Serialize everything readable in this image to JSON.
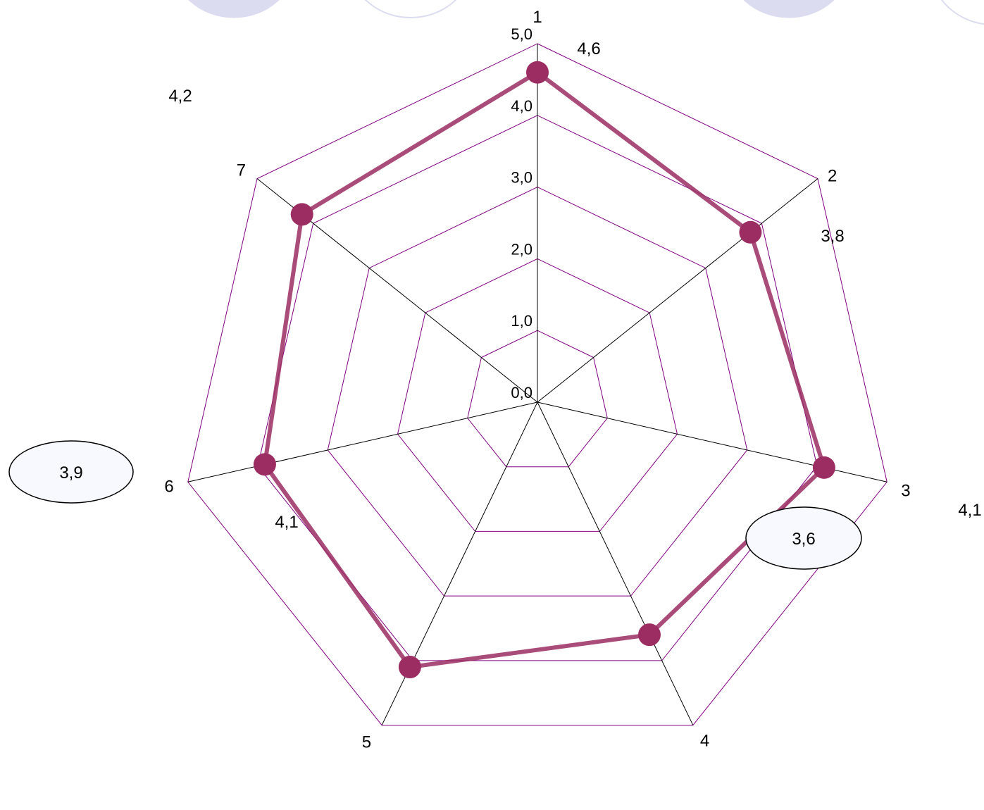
{
  "chart_data": {
    "type": "radar",
    "categories": [
      "1",
      "2",
      "3",
      "4",
      "5",
      "6",
      "7"
    ],
    "values": [
      4.6,
      3.8,
      4.1,
      3.6,
      4.1,
      3.9,
      4.2
    ],
    "value_labels": [
      "4,6",
      "3,8",
      "4,1",
      "3,6",
      "4,1",
      "3,9",
      "4,2"
    ],
    "rlim": [
      0,
      5
    ],
    "ticks": [
      0,
      1,
      2,
      3,
      4,
      5
    ],
    "tick_labels": [
      "0,0",
      "1,0",
      "2,0",
      "3,0",
      "4,0",
      "5,0"
    ],
    "grid": true,
    "colors": {
      "grid": "#800080",
      "spokes": "#000000",
      "series": "#9B2D62",
      "ellipse_fill_light": "#F8F8FF",
      "ellipse_fill_lavender": "#DCDCF0"
    }
  }
}
